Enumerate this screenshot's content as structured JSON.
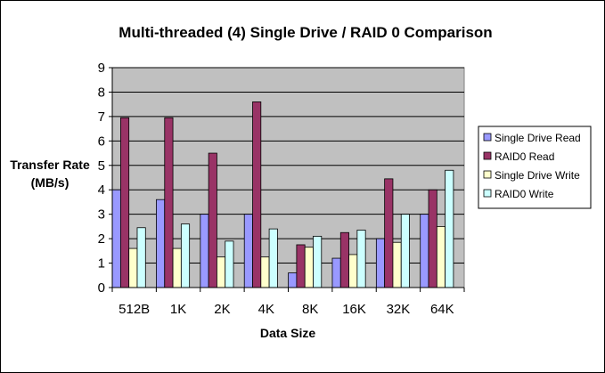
{
  "chart_data": {
    "type": "bar",
    "title": "Multi-threaded (4) Single Drive / RAID 0 Comparison",
    "xlabel": "Data Size",
    "ylabel_line1": "Transfer Rate",
    "ylabel_line2": "(MB/s)",
    "ylim": [
      0,
      9
    ],
    "yticks": [
      "0",
      "1",
      "2",
      "3",
      "4",
      "5",
      "6",
      "7",
      "8",
      "9"
    ],
    "grid": true,
    "legend_position": "right",
    "plot_background": "#c0c0c0",
    "categories": [
      "512B",
      "1K",
      "2K",
      "4K",
      "8K",
      "16K",
      "32K",
      "64K"
    ],
    "series": [
      {
        "name": "Single Drive Read",
        "color": "#9999ff",
        "values": [
          4.0,
          3.6,
          3.0,
          3.0,
          0.6,
          1.2,
          2.0,
          3.0
        ]
      },
      {
        "name": "RAID0 Read",
        "color": "#993366",
        "values": [
          6.95,
          6.95,
          5.5,
          7.6,
          1.75,
          2.25,
          4.45,
          4.0
        ]
      },
      {
        "name": "Single Drive Write",
        "color": "#ffffcc",
        "values": [
          1.6,
          1.6,
          1.25,
          1.25,
          1.65,
          1.35,
          1.85,
          2.5
        ]
      },
      {
        "name": "RAID0 Write",
        "color": "#ccffff",
        "values": [
          2.45,
          2.6,
          1.9,
          2.4,
          2.1,
          2.35,
          3.0,
          4.8
        ]
      }
    ]
  }
}
